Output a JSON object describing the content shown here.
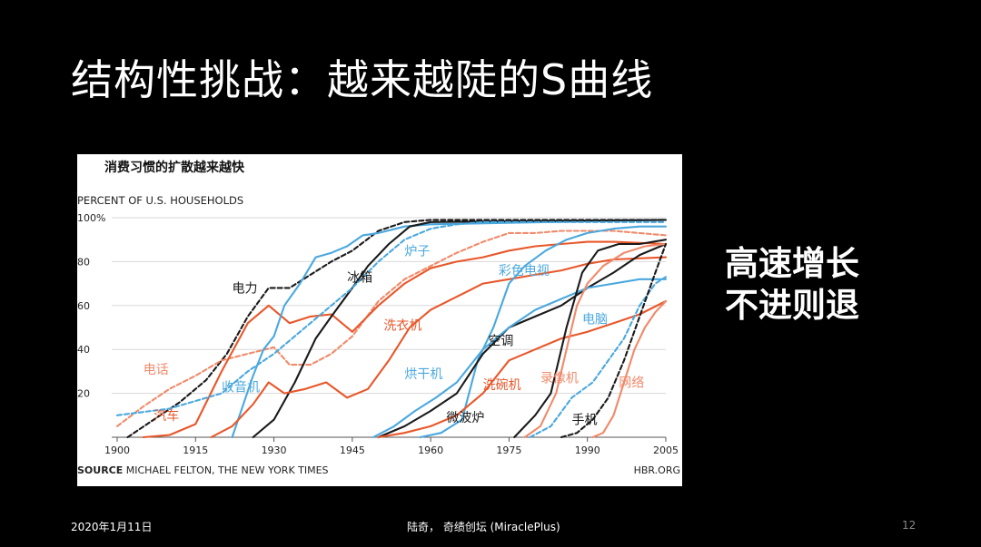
{
  "slide": {
    "title": "结构性挑战：越来越陡的S曲线",
    "side_line1": "高速增长",
    "side_line2": "不进则退",
    "footer_date": "2020年1月11日",
    "footer_center": "陆奇， 奇绩创坛 (MiraclePlus)",
    "page_number": "12"
  },
  "chart_data": {
    "type": "line",
    "title": "消费习惯的扩散越来越快",
    "ylabel": "PERCENT OF U.S. HOUSEHOLDS",
    "source_label": "SOURCE",
    "source_text": "MICHAEL FELTON, THE NEW YORK TIMES",
    "credit": "HBR.ORG",
    "xlim": [
      1900,
      2005
    ],
    "ylim": [
      0,
      100
    ],
    "x_ticks": [
      "1900",
      "1915",
      "1930",
      "1945",
      "1960",
      "1975",
      "1990",
      "2005"
    ],
    "y_ticks": [
      "20",
      "40",
      "60",
      "80",
      "100%"
    ],
    "grid": true,
    "colors": {
      "black": "#1a1a1a",
      "blue": "#4aa8de",
      "red": "#e8572a",
      "salmon": "#f08a6a"
    },
    "series": [
      {
        "name": "电力",
        "color": "black",
        "dash": true,
        "label_at": [
          1922,
          68
        ],
        "points": [
          [
            1902,
            0
          ],
          [
            1907,
            8
          ],
          [
            1912,
            16
          ],
          [
            1917,
            26
          ],
          [
            1921,
            38
          ],
          [
            1925,
            55
          ],
          [
            1929,
            68
          ],
          [
            1933,
            68
          ],
          [
            1937,
            74
          ],
          [
            1941,
            80
          ],
          [
            1945,
            85
          ],
          [
            1950,
            94
          ],
          [
            1955,
            98
          ],
          [
            1960,
            99
          ],
          [
            2005,
            99
          ]
        ]
      },
      {
        "name": "电话",
        "color": "salmon",
        "dash": true,
        "label_at": [
          1905,
          31
        ],
        "points": [
          [
            1900,
            5
          ],
          [
            1905,
            14
          ],
          [
            1910,
            22
          ],
          [
            1915,
            28
          ],
          [
            1920,
            35
          ],
          [
            1925,
            38
          ],
          [
            1930,
            41
          ],
          [
            1933,
            33
          ],
          [
            1937,
            33
          ],
          [
            1941,
            38
          ],
          [
            1945,
            46
          ],
          [
            1950,
            62
          ],
          [
            1955,
            72
          ],
          [
            1960,
            78
          ],
          [
            1965,
            84
          ],
          [
            1970,
            89
          ],
          [
            1975,
            93
          ],
          [
            1980,
            93
          ],
          [
            1985,
            94
          ],
          [
            1990,
            94
          ],
          [
            1995,
            94
          ],
          [
            2005,
            92
          ]
        ]
      },
      {
        "name": "汽车",
        "color": "red",
        "dash": false,
        "label_at": [
          1907,
          10
        ],
        "points": [
          [
            1905,
            0
          ],
          [
            1910,
            1
          ],
          [
            1915,
            6
          ],
          [
            1920,
            30
          ],
          [
            1925,
            52
          ],
          [
            1929,
            60
          ],
          [
            1933,
            52
          ],
          [
            1937,
            55
          ],
          [
            1941,
            56
          ],
          [
            1945,
            48
          ],
          [
            1950,
            60
          ],
          [
            1955,
            70
          ],
          [
            1960,
            77
          ],
          [
            1965,
            80
          ],
          [
            1970,
            82
          ],
          [
            1975,
            85
          ],
          [
            1980,
            87
          ],
          [
            1985,
            88
          ],
          [
            1990,
            89
          ],
          [
            1995,
            89
          ],
          [
            2005,
            88
          ]
        ]
      },
      {
        "name": "收音机",
        "color": "blue",
        "dash": false,
        "label_at": [
          1920,
          23
        ],
        "points": [
          [
            1922,
            0
          ],
          [
            1924,
            14
          ],
          [
            1926,
            28
          ],
          [
            1928,
            40
          ],
          [
            1930,
            46
          ],
          [
            1932,
            60
          ],
          [
            1935,
            70
          ],
          [
            1938,
            82
          ],
          [
            1941,
            84
          ],
          [
            1944,
            87
          ],
          [
            1947,
            92
          ],
          [
            1950,
            93
          ],
          [
            1955,
            96
          ],
          [
            1960,
            97
          ],
          [
            2005,
            99
          ]
        ]
      },
      {
        "name": "冰箱",
        "color": "black",
        "dash": false,
        "label_at": [
          1944,
          73
        ],
        "points": [
          [
            1926,
            0
          ],
          [
            1930,
            8
          ],
          [
            1934,
            25
          ],
          [
            1938,
            45
          ],
          [
            1941,
            55
          ],
          [
            1945,
            68
          ],
          [
            1948,
            78
          ],
          [
            1952,
            88
          ],
          [
            1956,
            96
          ],
          [
            1960,
            98
          ],
          [
            2005,
            99
          ]
        ]
      },
      {
        "name": "炉子",
        "color": "blue",
        "dash": true,
        "label_at": [
          1955,
          85
        ],
        "points": [
          [
            1900,
            10
          ],
          [
            1910,
            13
          ],
          [
            1920,
            20
          ],
          [
            1925,
            30
          ],
          [
            1930,
            38
          ],
          [
            1935,
            48
          ],
          [
            1940,
            58
          ],
          [
            1945,
            68
          ],
          [
            1950,
            80
          ],
          [
            1955,
            90
          ],
          [
            1960,
            95
          ],
          [
            1965,
            97
          ],
          [
            1970,
            98
          ],
          [
            2005,
            98
          ]
        ]
      },
      {
        "name": "洗衣机",
        "color": "red",
        "dash": false,
        "label_at": [
          1951,
          51
        ],
        "points": [
          [
            1918,
            0
          ],
          [
            1922,
            5
          ],
          [
            1926,
            15
          ],
          [
            1929,
            25
          ],
          [
            1932,
            20
          ],
          [
            1936,
            22
          ],
          [
            1940,
            25
          ],
          [
            1944,
            18
          ],
          [
            1948,
            22
          ],
          [
            1952,
            35
          ],
          [
            1956,
            50
          ],
          [
            1960,
            58
          ],
          [
            1965,
            64
          ],
          [
            1970,
            70
          ],
          [
            1975,
            72
          ],
          [
            1980,
            74
          ],
          [
            1985,
            76
          ],
          [
            1990,
            79
          ],
          [
            1995,
            81
          ],
          [
            2005,
            82
          ]
        ]
      },
      {
        "name": "彩色电视",
        "color": "blue",
        "dash": false,
        "label_at": [
          1973,
          76
        ],
        "points": [
          [
            1958,
            0
          ],
          [
            1962,
            2
          ],
          [
            1966,
            8
          ],
          [
            1969,
            35
          ],
          [
            1972,
            50
          ],
          [
            1975,
            70
          ],
          [
            1978,
            78
          ],
          [
            1982,
            85
          ],
          [
            1986,
            90
          ],
          [
            1990,
            93
          ],
          [
            1995,
            95
          ],
          [
            2000,
            96
          ],
          [
            2005,
            96
          ]
        ]
      },
      {
        "name": "空调",
        "color": "black",
        "dash": false,
        "label_at": [
          1971,
          44
        ],
        "points": [
          [
            1950,
            0
          ],
          [
            1955,
            5
          ],
          [
            1960,
            12
          ],
          [
            1965,
            20
          ],
          [
            1970,
            38
          ],
          [
            1975,
            50
          ],
          [
            1980,
            55
          ],
          [
            1985,
            60
          ],
          [
            1990,
            68
          ],
          [
            1995,
            75
          ],
          [
            2000,
            83
          ],
          [
            2005,
            88
          ]
        ]
      },
      {
        "name": "烘干机",
        "color": "blue",
        "dash": false,
        "label_at": [
          1955,
          29
        ],
        "points": [
          [
            1949,
            0
          ],
          [
            1953,
            5
          ],
          [
            1957,
            12
          ],
          [
            1961,
            18
          ],
          [
            1965,
            25
          ],
          [
            1970,
            40
          ],
          [
            1975,
            50
          ],
          [
            1980,
            58
          ],
          [
            1985,
            63
          ],
          [
            1990,
            68
          ],
          [
            1995,
            70
          ],
          [
            2000,
            72
          ],
          [
            2005,
            72
          ]
        ]
      },
      {
        "name": "洗碗机",
        "color": "red",
        "dash": false,
        "label_at": [
          1970,
          24
        ],
        "points": [
          [
            1950,
            0
          ],
          [
            1955,
            2
          ],
          [
            1960,
            5
          ],
          [
            1965,
            10
          ],
          [
            1970,
            20
          ],
          [
            1975,
            35
          ],
          [
            1980,
            40
          ],
          [
            1985,
            45
          ],
          [
            1990,
            48
          ],
          [
            1995,
            52
          ],
          [
            2000,
            56
          ],
          [
            2005,
            62
          ]
        ]
      },
      {
        "name": "微波炉",
        "color": "black",
        "dash": false,
        "label_at": [
          1963,
          9
        ],
        "points": [
          [
            1976,
            0
          ],
          [
            1980,
            10
          ],
          [
            1983,
            20
          ],
          [
            1986,
            50
          ],
          [
            1989,
            75
          ],
          [
            1992,
            85
          ],
          [
            1996,
            88
          ],
          [
            2000,
            88
          ],
          [
            2005,
            90
          ]
        ]
      },
      {
        "name": "录像机",
        "color": "salmon",
        "dash": false,
        "label_at": [
          1981,
          27
        ],
        "points": [
          [
            1978,
            0
          ],
          [
            1981,
            5
          ],
          [
            1984,
            20
          ],
          [
            1986,
            40
          ],
          [
            1988,
            60
          ],
          [
            1990,
            70
          ],
          [
            1993,
            78
          ],
          [
            1997,
            84
          ],
          [
            2001,
            87
          ],
          [
            2005,
            88
          ]
        ]
      },
      {
        "name": "电脑",
        "color": "blue",
        "dash": true,
        "label_at": [
          1989,
          54
        ],
        "points": [
          [
            1979,
            0
          ],
          [
            1983,
            5
          ],
          [
            1987,
            18
          ],
          [
            1991,
            25
          ],
          [
            1994,
            35
          ],
          [
            1997,
            45
          ],
          [
            2000,
            60
          ],
          [
            2003,
            70
          ],
          [
            2005,
            73
          ]
        ]
      },
      {
        "name": "网络",
        "color": "salmon",
        "dash": false,
        "label_at": [
          1996,
          25
        ],
        "points": [
          [
            1991,
            0
          ],
          [
            1993,
            2
          ],
          [
            1995,
            10
          ],
          [
            1997,
            25
          ],
          [
            1999,
            40
          ],
          [
            2001,
            50
          ],
          [
            2003,
            57
          ],
          [
            2005,
            62
          ]
        ]
      },
      {
        "name": "手机",
        "color": "black",
        "dash": true,
        "label_at": [
          1987,
          8
        ],
        "points": [
          [
            1985,
            0
          ],
          [
            1988,
            2
          ],
          [
            1991,
            8
          ],
          [
            1994,
            18
          ],
          [
            1997,
            35
          ],
          [
            2000,
            55
          ],
          [
            2003,
            75
          ],
          [
            2005,
            88
          ]
        ]
      }
    ]
  }
}
